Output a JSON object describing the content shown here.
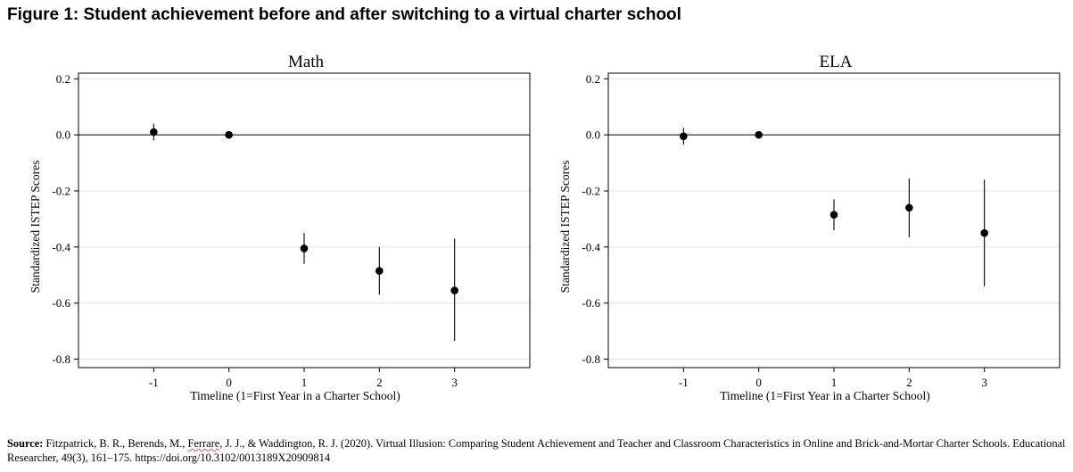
{
  "figure": {
    "title": "Figure 1: Student achievement before and after switching to a virtual charter school"
  },
  "chart_data": [
    {
      "type": "scatter",
      "title": "Math",
      "xlabel": "Timeline (1=First Year in a Charter School)",
      "ylabel": "Standardized ISTEP Scores",
      "x_ticks": [
        -1,
        0,
        1,
        2,
        3
      ],
      "y_ticks": [
        0.2,
        0.0,
        -0.2,
        -0.4,
        -0.6,
        -0.8
      ],
      "y_tick_labels": [
        "0.2",
        "0.0",
        "-0.2",
        "-0.4",
        "-0.6",
        "-0.8"
      ],
      "x_tick_labels": [
        "-1",
        "0",
        "1",
        "2",
        "3"
      ],
      "xlim": [
        -2,
        4
      ],
      "ylim": [
        -0.83,
        0.22
      ],
      "reference_line": 0.0,
      "series": [
        {
          "name": "Math",
          "x": [
            -1,
            0,
            1,
            2,
            3
          ],
          "y": [
            0.01,
            0.0,
            -0.405,
            -0.485,
            -0.555
          ],
          "ci_low": [
            -0.02,
            0.0,
            -0.46,
            -0.57,
            -0.735
          ],
          "ci_high": [
            0.04,
            0.0,
            -0.35,
            -0.4,
            -0.37
          ]
        }
      ]
    },
    {
      "type": "scatter",
      "title": "ELA",
      "xlabel": "Timeline (1=First Year in a Charter School)",
      "ylabel": "Standardized ISTEP Scores",
      "x_ticks": [
        -1,
        0,
        1,
        2,
        3
      ],
      "y_ticks": [
        0.2,
        0.0,
        -0.2,
        -0.4,
        -0.6,
        -0.8
      ],
      "y_tick_labels": [
        "0.2",
        "0.0",
        "-0.2",
        "-0.4",
        "-0.6",
        "-0.8"
      ],
      "x_tick_labels": [
        "-1",
        "0",
        "1",
        "2",
        "3"
      ],
      "xlim": [
        -2,
        4
      ],
      "ylim": [
        -0.83,
        0.22
      ],
      "reference_line": 0.0,
      "series": [
        {
          "name": "ELA",
          "x": [
            -1,
            0,
            1,
            2,
            3
          ],
          "y": [
            -0.005,
            0.0,
            -0.285,
            -0.26,
            -0.35
          ],
          "ci_low": [
            -0.035,
            0.0,
            -0.34,
            -0.365,
            -0.54
          ],
          "ci_high": [
            0.025,
            0.0,
            -0.23,
            -0.155,
            -0.16
          ]
        }
      ]
    }
  ],
  "source": {
    "label": "Source:",
    "text_before": " Fitzpatrick, B. R., Berends, M., ",
    "highlighted": "Ferrare",
    "text_after": ", J. J., & Waddington, R. J. (2020). Virtual Illusion: Comparing Student Achievement and Teacher and Classroom Characteristics in Online and Brick-and-Mortar Charter Schools. Educational Researcher, 49(3), 161–175. https://doi.org/10.3102/0013189X20909814"
  }
}
